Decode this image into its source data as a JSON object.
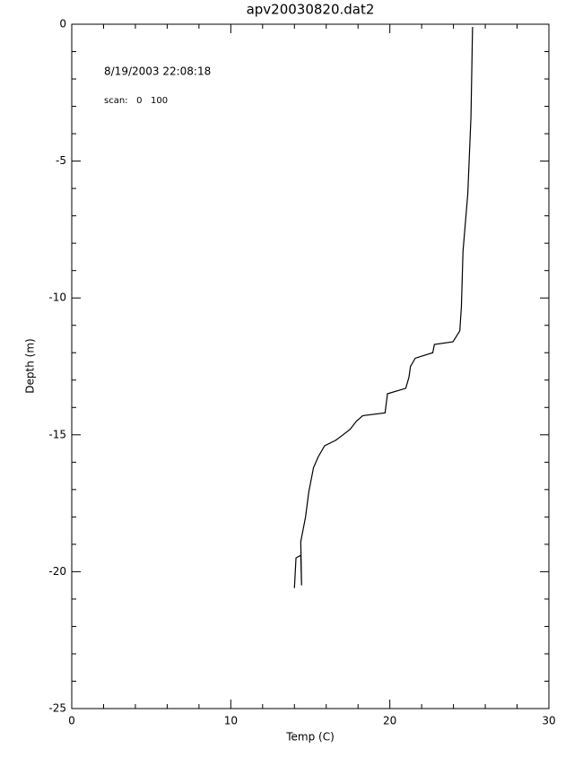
{
  "chart_data": {
    "type": "line",
    "title": "apv20030820.dat2",
    "xlabel": "Temp (C)",
    "ylabel": "Depth (m)",
    "annotations": [
      "8/19/2003 22:08:18",
      "scan:   0   100"
    ],
    "x": [
      25.2,
      25.1,
      24.9,
      24.6,
      24.5,
      24.4,
      23.97,
      22.8,
      22.7,
      21.6,
      21.3,
      21.2,
      21.0,
      19.85,
      19.7,
      18.3,
      17.9,
      17.5,
      16.6,
      15.9,
      15.5,
      15.2,
      14.9,
      14.7,
      14.5,
      14.4,
      14.45,
      14.4,
      14.1,
      14.0
    ],
    "values": [
      -0.1,
      -3.4,
      -6.2,
      -8.3,
      -10.3,
      -11.2,
      -11.6,
      -11.7,
      -12.0,
      -12.2,
      -12.5,
      -12.9,
      -13.3,
      -13.5,
      -14.2,
      -14.3,
      -14.5,
      -14.8,
      -15.2,
      -15.4,
      -15.8,
      -16.2,
      -17.1,
      -18.0,
      -18.6,
      -18.9,
      -20.5,
      -19.4,
      -19.5,
      -20.6
    ],
    "color": "#000000",
    "xlim": [
      0,
      30
    ],
    "xticks": [
      0,
      10,
      20,
      30
    ],
    "ylim": [
      -25,
      0
    ],
    "yticks": [
      -25,
      -20,
      -15,
      -10,
      -5,
      0
    ]
  }
}
